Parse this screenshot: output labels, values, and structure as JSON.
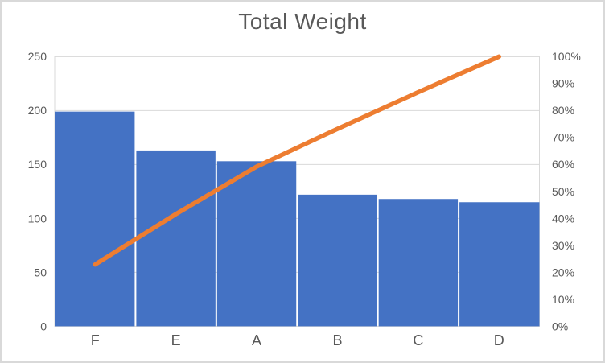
{
  "chart_data": {
    "type": "pareto",
    "title": "Total Weight",
    "categories": [
      "F",
      "E",
      "A",
      "B",
      "C",
      "D"
    ],
    "series": [
      {
        "name": "total-weight-bars",
        "type": "bar",
        "axis": "left",
        "values": [
          199,
          163,
          153,
          122,
          118,
          115
        ]
      },
      {
        "name": "cumulative-percent-line",
        "type": "line",
        "axis": "right",
        "values": [
          22.9,
          41.6,
          59.2,
          73.2,
          86.8,
          100
        ]
      }
    ],
    "left_axis": {
      "min": 0,
      "max": 250,
      "step": 50,
      "ticks": [
        "0",
        "50",
        "100",
        "150",
        "200",
        "250"
      ]
    },
    "right_axis": {
      "min": 0,
      "max": 100,
      "step": 10,
      "ticks": [
        "0%",
        "10%",
        "20%",
        "30%",
        "40%",
        "50%",
        "60%",
        "70%",
        "80%",
        "90%",
        "100%"
      ]
    },
    "grid": true,
    "legend": "none",
    "colors": {
      "bar": "#4472C4",
      "line": "#ED7D31",
      "text": "#595959",
      "grid": "#D9D9D9",
      "border": "#D9D9D9",
      "background": "#FFFFFF"
    }
  }
}
